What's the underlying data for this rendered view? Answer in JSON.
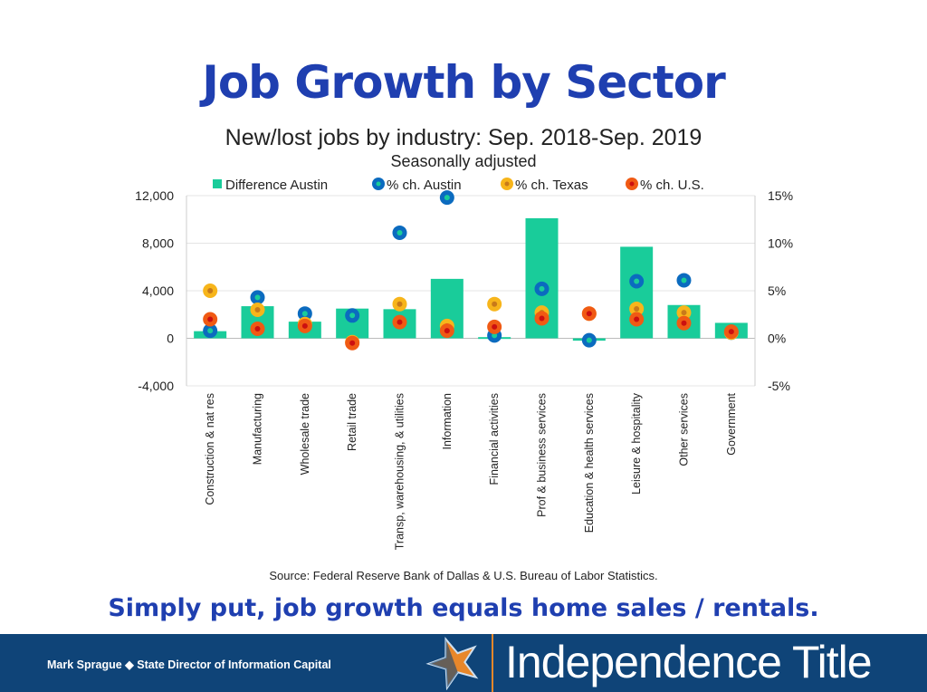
{
  "title": "Job Growth by Sector",
  "tagline": "Simply put, job growth equals home sales / rentals.",
  "footer": {
    "presenter": "Mark Sprague",
    "separator": "◆",
    "role": "State Director of Information Capital",
    "brand": "Independence Title"
  },
  "colors": {
    "bar": "#19cc9a",
    "austin": "#0b6bbf",
    "texas": "#f7b51b",
    "us": "#f05a14",
    "title": "#1f3fb0",
    "footer": "#0f4478"
  },
  "chart_data": {
    "type": "bar",
    "title": "New/lost jobs by industry: Sep. 2018-Sep. 2019",
    "subtitle": "Seasonally adjusted",
    "source": "Source: Federal Reserve Bank of Dallas & U.S. Bureau of Labor Statistics.",
    "categories": [
      "Construction & nat res",
      "Manufacturing",
      "Wholesale trade",
      "Retail trade",
      "Transp, warehousing, & utilities",
      "Information",
      "Financial activities",
      "Prof & business services",
      "Education & health services",
      "Leisure & hospitality",
      "Other services",
      "Government"
    ],
    "left_axis": {
      "ylim": [
        -4000,
        12000
      ],
      "ticks": [
        -4000,
        0,
        4000,
        8000,
        12000
      ],
      "tick_labels": [
        "-4,000",
        "0",
        "4,000",
        "8,000",
        "12,000"
      ]
    },
    "right_axis": {
      "ylim": [
        -5,
        15
      ],
      "ticks": [
        -5,
        0,
        5,
        10,
        15
      ],
      "tick_labels": [
        "-5%",
        "0%",
        "5%",
        "10%",
        "15%"
      ]
    },
    "legend": [
      "Difference Austin",
      "% ch. Austin",
      "% ch. Texas",
      "% ch. U.S."
    ],
    "legend_position": "top",
    "grid": true,
    "series": [
      {
        "name": "Difference Austin",
        "type": "bar",
        "axis": "left",
        "values": [
          600,
          2700,
          1400,
          2500,
          2450,
          5000,
          100,
          10100,
          -200,
          7700,
          2800,
          1300
        ]
      },
      {
        "name": "% ch. Austin",
        "type": "scatter",
        "axis": "right",
        "values": [
          0.8,
          4.3,
          2.6,
          2.4,
          11.1,
          14.8,
          0.3,
          5.2,
          -0.2,
          6.0,
          6.1,
          0.6
        ]
      },
      {
        "name": "% ch. Texas",
        "type": "scatter",
        "axis": "right",
        "values": [
          5.0,
          3.0,
          1.5,
          -0.4,
          3.6,
          1.3,
          3.6,
          2.7,
          2.6,
          3.1,
          2.7,
          0.6
        ]
      },
      {
        "name": "% ch. U.S.",
        "type": "scatter",
        "axis": "right",
        "values": [
          2.0,
          1.0,
          1.3,
          -0.5,
          1.7,
          0.8,
          1.2,
          2.1,
          2.6,
          2.0,
          1.6,
          0.7
        ]
      }
    ]
  }
}
